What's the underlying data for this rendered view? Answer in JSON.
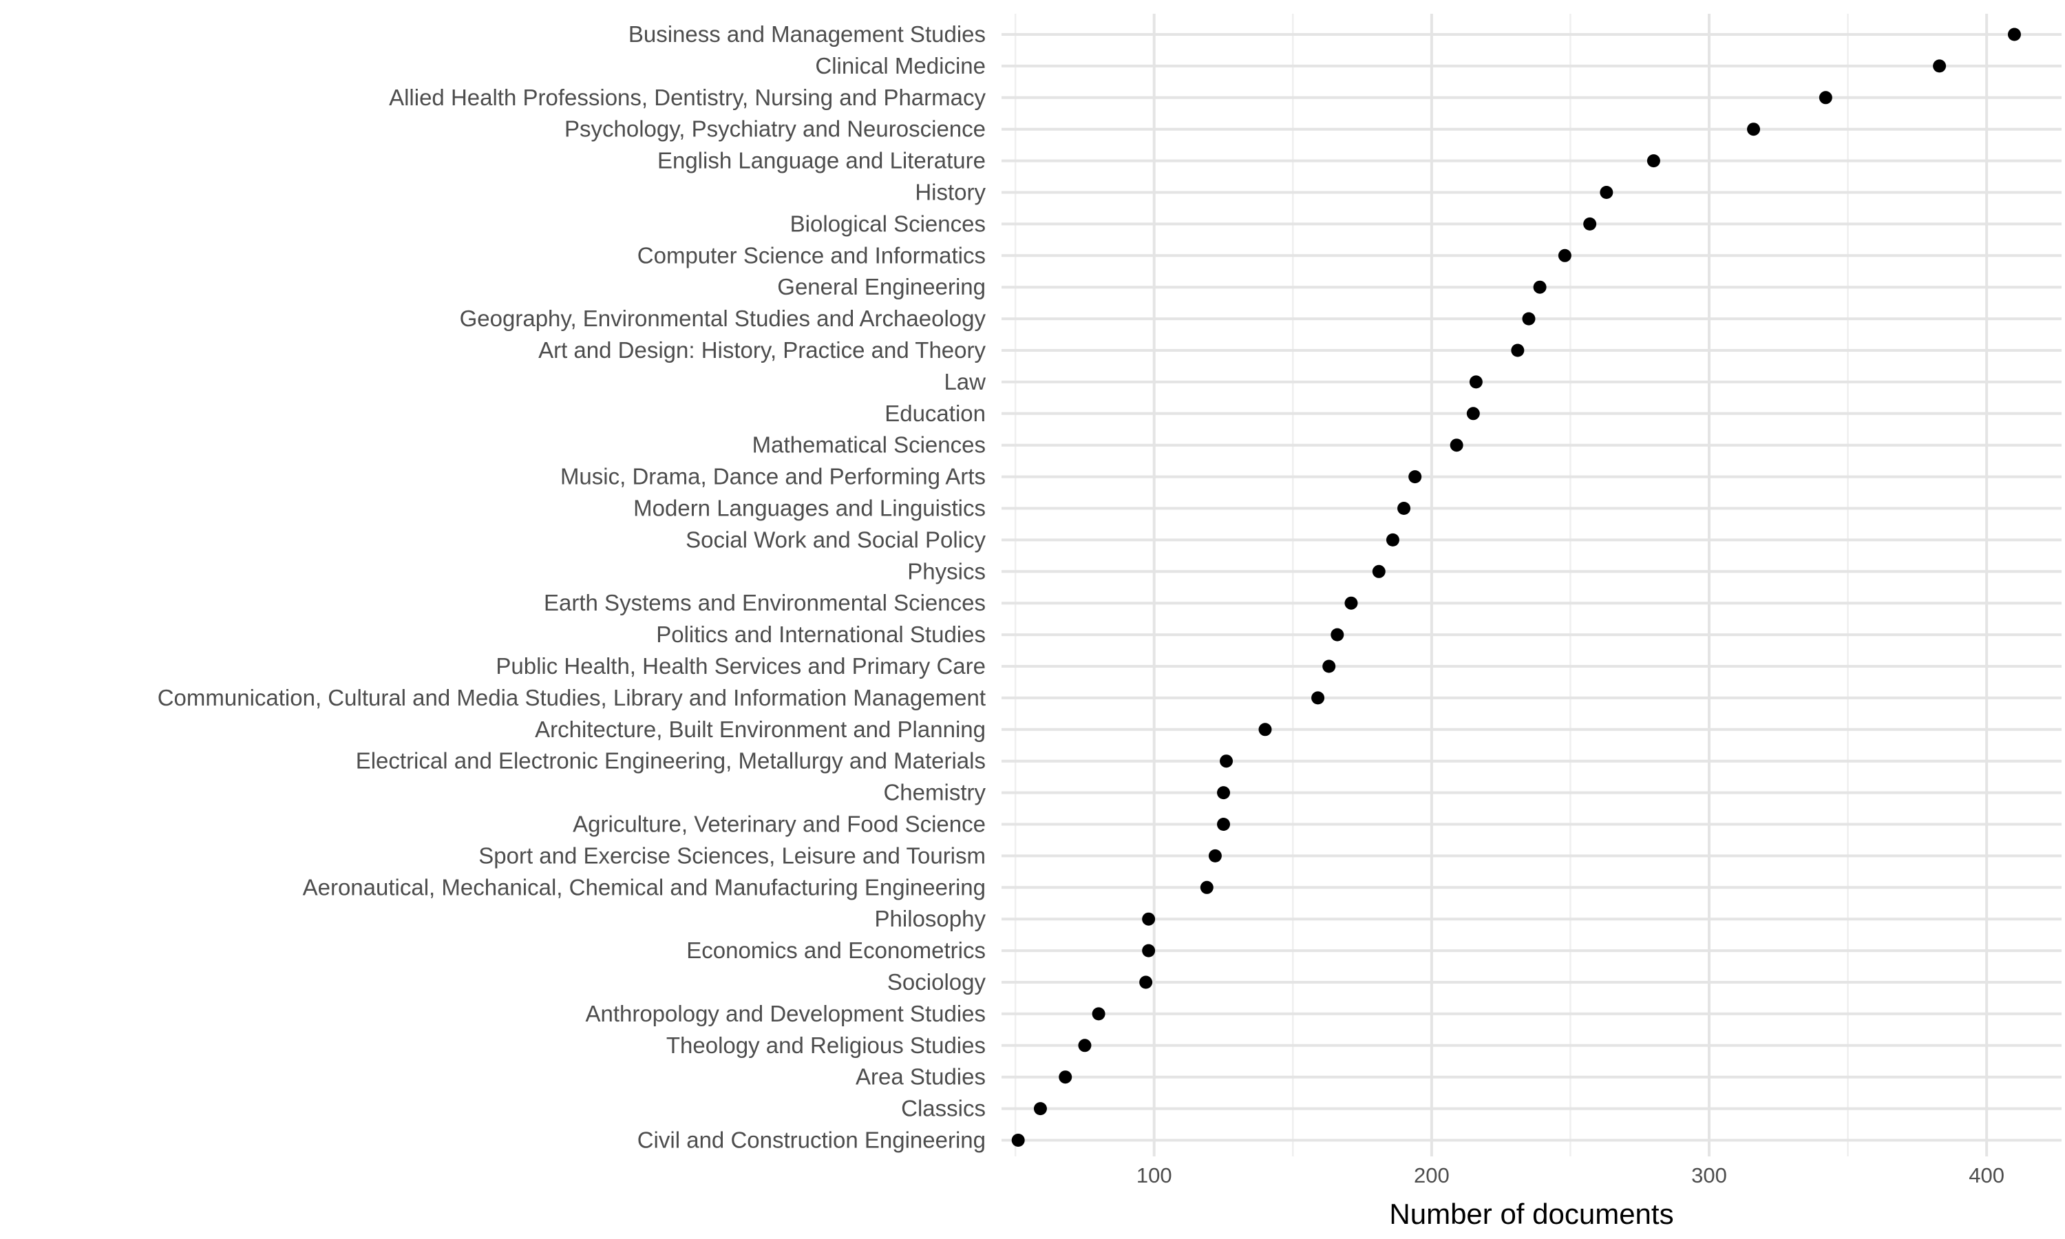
{
  "chart_data": {
    "type": "scatter",
    "orientation": "horizontal",
    "title": "",
    "xlabel": "Number of documents",
    "ylabel": "",
    "xlim": [
      45,
      427
    ],
    "x_ticks": [
      100,
      200,
      300,
      400
    ],
    "x_tick_labels": [
      "100",
      "200",
      "300",
      "400"
    ],
    "grid": true,
    "legend": "none",
    "point_color": "#000000",
    "categories": [
      "Business and Management Studies",
      "Clinical Medicine",
      "Allied Health Professions, Dentistry, Nursing and Pharmacy",
      "Psychology, Psychiatry and Neuroscience",
      "English Language and Literature",
      "History",
      "Biological Sciences",
      "Computer Science and Informatics",
      "General Engineering",
      "Geography, Environmental Studies and Archaeology",
      "Art and Design: History, Practice and Theory",
      "Law",
      "Education",
      "Mathematical Sciences",
      "Music, Drama, Dance and Performing Arts",
      "Modern Languages and Linguistics",
      "Social Work and Social Policy",
      "Physics",
      "Earth Systems and Environmental Sciences",
      "Politics and International Studies",
      "Public Health, Health Services and Primary Care",
      "Communication, Cultural and Media Studies, Library and Information Management ",
      "Architecture, Built Environment and Planning",
      "Electrical and Electronic Engineering, Metallurgy and Materials",
      "Chemistry",
      "Agriculture, Veterinary and Food Science",
      "Sport and Exercise Sciences, Leisure and Tourism",
      "Aeronautical, Mechanical, Chemical and Manufacturing Engineering",
      "Philosophy",
      "Economics and Econometrics",
      "Sociology",
      "Anthropology and Development Studies",
      "Theology and Religious Studies",
      "Area Studies",
      "Classics",
      "Civil and Construction Engineering"
    ],
    "values": [
      410,
      383,
      342,
      316,
      280,
      263,
      257,
      248,
      239,
      235,
      231,
      216,
      215,
      209,
      194,
      190,
      186,
      181,
      171,
      166,
      163,
      159,
      140,
      126,
      125,
      125,
      122,
      119,
      98,
      98,
      97,
      80,
      75,
      68,
      59,
      51
    ]
  }
}
